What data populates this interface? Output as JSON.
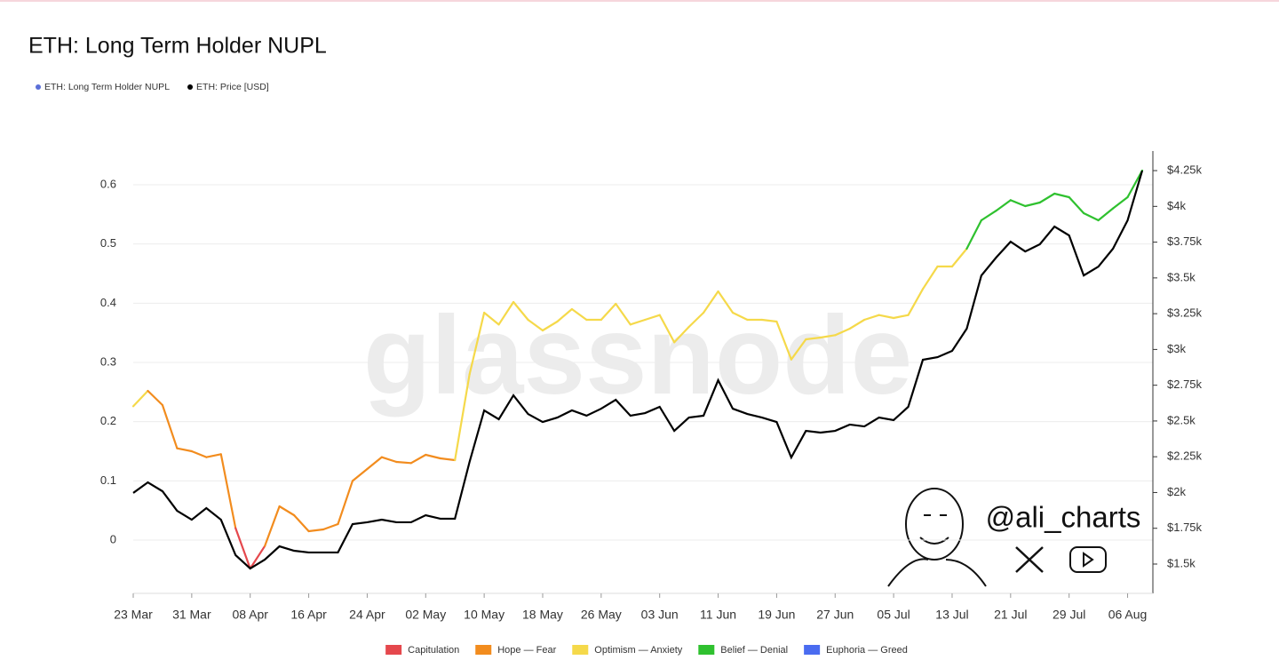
{
  "chart_data": {
    "type": "line",
    "title": "ETH: Long Term Holder NUPL",
    "watermark": "glassnode",
    "credit": "@ali_charts",
    "categories": [
      "23 Mar",
      null,
      null,
      null,
      "31 Mar",
      null,
      null,
      null,
      "08 Apr",
      null,
      null,
      null,
      "16 Apr",
      null,
      null,
      null,
      "24 Apr",
      null,
      null,
      null,
      "02 May",
      null,
      null,
      null,
      "10 May",
      null,
      null,
      null,
      "18 May",
      null,
      null,
      null,
      "26 May",
      null,
      null,
      null,
      "03 Jun",
      null,
      null,
      null,
      "11 Jun",
      null,
      null,
      null,
      "19 Jun",
      null,
      null,
      null,
      "27 Jun",
      null,
      null,
      null,
      "05 Jul",
      null,
      null,
      null,
      "13 Jul",
      null,
      null,
      null,
      "21 Jul",
      null,
      null,
      null,
      "29 Jul",
      null,
      null,
      null,
      "06 Aug",
      null
    ],
    "series": [
      {
        "name": "ETH: Long Term Holder NUPL",
        "color": "#5b6fd8",
        "axis": "y",
        "values": [
          0.226,
          0.252,
          0.228,
          0.155,
          0.15,
          0.14,
          0.145,
          0.02,
          -0.048,
          -0.01,
          0.057,
          0.042,
          0.015,
          0.018,
          0.027,
          0.1,
          0.12,
          0.14,
          0.132,
          0.13,
          0.144,
          0.138,
          0.135,
          0.28,
          0.384,
          0.364,
          0.402,
          0.372,
          0.354,
          0.369,
          0.39,
          0.372,
          0.372,
          0.399,
          0.364,
          0.372,
          0.38,
          0.334,
          0.36,
          0.384,
          0.42,
          0.384,
          0.372,
          0.372,
          0.369,
          0.305,
          0.339,
          0.342,
          0.346,
          0.357,
          0.372,
          0.38,
          0.375,
          0.38,
          0.424,
          0.462,
          0.462,
          0.492,
          0.54,
          0.556,
          0.574,
          0.564,
          0.57,
          0.585,
          0.579,
          0.552,
          0.54,
          0.56,
          0.579,
          0.624
        ]
      },
      {
        "name": "ETH: Price [USD]",
        "color": "#000000",
        "axis": "y2",
        "values": [
          1997,
          2071,
          2009,
          1872,
          1810,
          1891,
          1810,
          1562,
          1469,
          1531,
          1624,
          1593,
          1581,
          1581,
          1581,
          1779,
          1792,
          1810,
          1792,
          1792,
          1841,
          1817,
          1817,
          2214,
          2574,
          2512,
          2679,
          2549,
          2493,
          2524,
          2574,
          2537,
          2586,
          2648,
          2537,
          2555,
          2599,
          2431,
          2524,
          2537,
          2785,
          2586,
          2549,
          2524,
          2493,
          2245,
          2431,
          2419,
          2431,
          2475,
          2462,
          2524,
          2506,
          2599,
          2928,
          2946,
          2990,
          3145,
          3517,
          3641,
          3753,
          3685,
          3735,
          3859,
          3797,
          3517,
          3579,
          3704,
          3902,
          4250
        ]
      }
    ],
    "zones": [
      {
        "name": "Capitulation",
        "color": "#e5484d",
        "max": 0
      },
      {
        "name": "Hope — Fear",
        "color": "#f28c1e",
        "max": 0.25
      },
      {
        "name": "Optimism — Anxiety",
        "color": "#f5d94a",
        "max": 0.5
      },
      {
        "name": "Belief — Denial",
        "color": "#2fc12f",
        "max": 0.75
      },
      {
        "name": "Euphoria — Greed",
        "color": "#4a6cf0",
        "max": 1
      }
    ],
    "ylim": [
      -0.09,
      0.657
    ],
    "yticks": [
      {
        "value": 0,
        "label": "0"
      },
      0.1,
      0.2,
      0.3,
      0.4,
      0.5,
      0.6
    ],
    "y2lim": [
      1295,
      4387
    ],
    "y2ticks": [
      {
        "value": 1500,
        "label": "$1.5k"
      },
      {
        "value": 1750,
        "label": "$1.75k"
      },
      {
        "value": 2000,
        "label": "$2k"
      },
      {
        "value": 2250,
        "label": "$2.25k"
      },
      {
        "value": 2500,
        "label": "$2.5k"
      },
      {
        "value": 2750,
        "label": "$2.75k"
      },
      {
        "value": 3000,
        "label": "$3k"
      },
      {
        "value": 3250,
        "label": "$3.25k"
      },
      {
        "value": 3500,
        "label": "$3.5k"
      },
      {
        "value": 3750,
        "label": "$3.75k"
      },
      {
        "value": 4000,
        "label": "$4k"
      },
      {
        "value": 4250,
        "label": "$4.25k"
      }
    ],
    "grid": true
  }
}
